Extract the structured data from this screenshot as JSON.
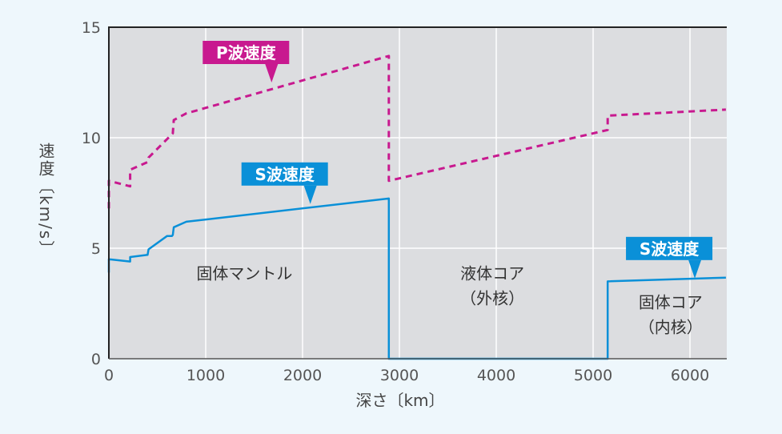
{
  "chart_data": {
    "type": "line",
    "xlabel": "深さ〔km〕",
    "ylabel": "速度〔km/s〕",
    "xlim": [
      0,
      6371
    ],
    "ylim": [
      0,
      15
    ],
    "xticks": [
      0,
      1000,
      2000,
      3000,
      4000,
      5000,
      6000
    ],
    "yticks": [
      0,
      5,
      10,
      15
    ],
    "grid": true,
    "colors": {
      "p": "#c8198f",
      "s": "#0a90d8",
      "plot_bg": "#dcdde0",
      "page_bg": "#eef7fc"
    },
    "series": [
      {
        "name": "P波速度",
        "style": "dashed",
        "x": [
          0,
          0,
          220,
          220,
          400,
          410,
          660,
          670,
          800,
          2891,
          2891,
          5150,
          5150,
          6371
        ],
        "y": [
          6.8,
          8.05,
          7.8,
          8.55,
          8.9,
          9.1,
          10.2,
          10.8,
          11.1,
          13.7,
          8.05,
          10.35,
          11.0,
          11.27
        ]
      },
      {
        "name": "S波速度",
        "style": "solid",
        "x": [
          0,
          0,
          220,
          220,
          400,
          410,
          600,
          650,
          660,
          670,
          800,
          2891,
          2891,
          5150,
          5150,
          6371
        ],
        "y": [
          3.9,
          4.5,
          4.4,
          4.6,
          4.7,
          4.95,
          5.55,
          5.55,
          5.6,
          5.95,
          6.2,
          7.25,
          0,
          0,
          3.5,
          3.67
        ]
      }
    ],
    "callouts": [
      {
        "text": "P波速度",
        "series": "p",
        "x": 1680,
        "y": 12.5
      },
      {
        "text": "S波速度",
        "series": "s",
        "x": 2080,
        "y": 7.0
      },
      {
        "text": "S波速度",
        "series": "s",
        "x": 6050,
        "y": 3.63
      }
    ],
    "region_labels": [
      {
        "lines": [
          "固体マントル"
        ],
        "x": 1400,
        "y": 3.6
      },
      {
        "lines": [
          "液体コア",
          "（外核）"
        ],
        "x": 3960,
        "y": 3.6
      },
      {
        "lines": [
          "固体コア",
          "（内核）"
        ],
        "x": 5800,
        "y": 2.3
      }
    ]
  }
}
